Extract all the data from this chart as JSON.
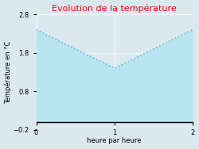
{
  "title": "Evolution de la température",
  "title_color": "#ff0000",
  "xlabel": "heure par heure",
  "ylabel": "Température en °C",
  "x": [
    0,
    1,
    2
  ],
  "y": [
    2.4,
    1.4,
    2.4
  ],
  "ylim": [
    -0.2,
    2.8
  ],
  "xlim": [
    0,
    2
  ],
  "xticks": [
    0,
    1,
    2
  ],
  "yticks": [
    -0.2,
    0.8,
    1.8,
    2.8
  ],
  "line_color": "#5cc8d8",
  "fill_color": "#b8e4f0",
  "fill_alpha": 1.0,
  "bg_color": "#dce8f0",
  "plot_bg_color": "#dce8f0",
  "grid_color": "#ffffff",
  "line_style": "dotted",
  "line_width": 1.2,
  "title_fontsize": 8,
  "label_fontsize": 6,
  "tick_fontsize": 6
}
